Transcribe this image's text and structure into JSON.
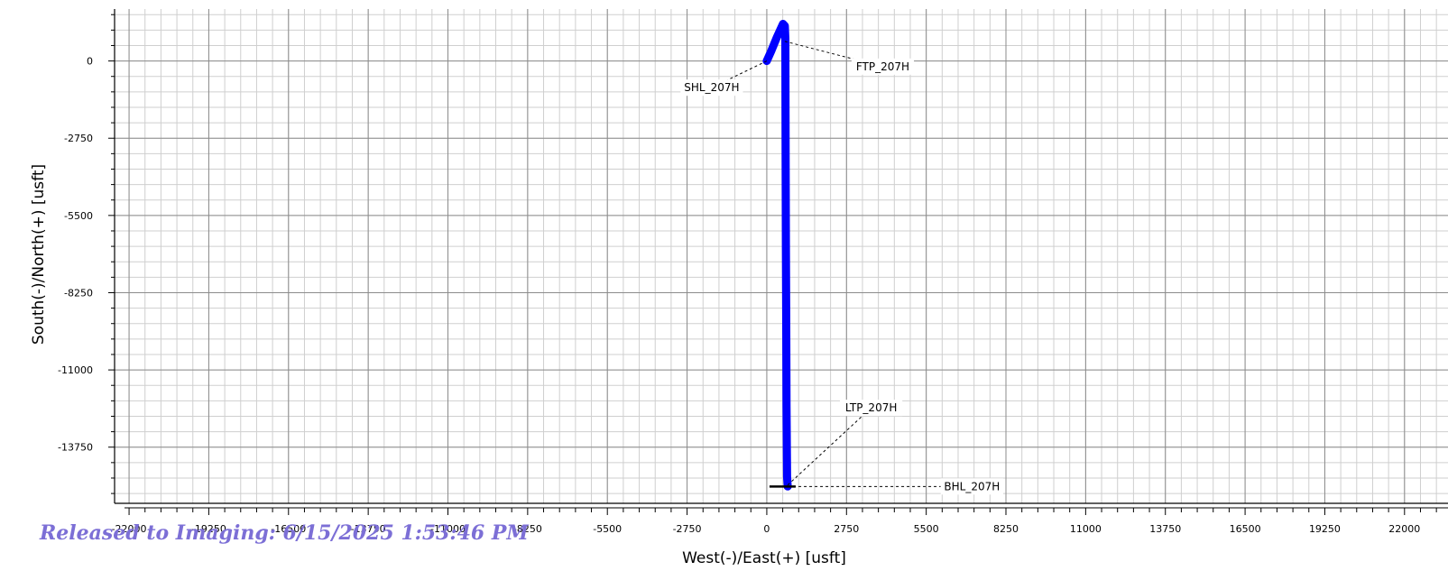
{
  "stamp": {
    "text": "Released to Imaging: 6/15/2025 1:53:46 PM",
    "color": "#7c6fd6"
  },
  "chart_data": {
    "type": "line",
    "title": "",
    "xlabel": "West(-)/East(+)  [usft]",
    "ylabel": "South(-)/North(+)  [usft]",
    "xlim": [
      -22500,
      23500
    ],
    "ylim": [
      -15750,
      1850
    ],
    "x_ticks": [
      -22000,
      -19250,
      -16500,
      -13750,
      -11000,
      -8250,
      -5500,
      -2750,
      0,
      2750,
      5500,
      8250,
      11000,
      13750,
      16500,
      19250,
      22000
    ],
    "x_tick_labels": [
      "-22000",
      "-19250",
      "-16500",
      "-13750",
      "-11000",
      "-8250",
      "-5500",
      "-2750",
      "0",
      "2750",
      "5500",
      "8250",
      "11000",
      "13750",
      "16500",
      "19250",
      "22000"
    ],
    "y_ticks": [
      0,
      -2750,
      -5500,
      -8250,
      -11000,
      -13750
    ],
    "y_tick_labels": [
      "0",
      "-2750",
      "-5500",
      "-8250",
      "-11000",
      "-13750"
    ],
    "grid": true,
    "series": [
      {
        "color": "#0000ff",
        "x": [
          0,
          150,
          350,
          560,
          620,
          640,
          650,
          660,
          670,
          680,
          700,
          720
        ],
        "y": [
          0,
          350,
          850,
          1320,
          1250,
          800,
          -3300,
          -6500,
          -9500,
          -12300,
          -14800,
          -15150
        ]
      }
    ],
    "annotations": [
      {
        "label": "SHL_207H",
        "x": 0,
        "y": 0,
        "tx": -1900,
        "ty": -950
      },
      {
        "label": "FTP_207H",
        "x": 620,
        "y": 700,
        "tx": 4000,
        "ty": -200
      },
      {
        "label": "LTP_207H",
        "x": 720,
        "y": -15100,
        "tx": 3600,
        "ty": -12350
      },
      {
        "label": "BHL_207H",
        "x": 720,
        "y": -15150,
        "tx": 6000,
        "ty": -15150
      }
    ],
    "bhl_marker": {
      "x": 560,
      "y": -15150
    }
  }
}
